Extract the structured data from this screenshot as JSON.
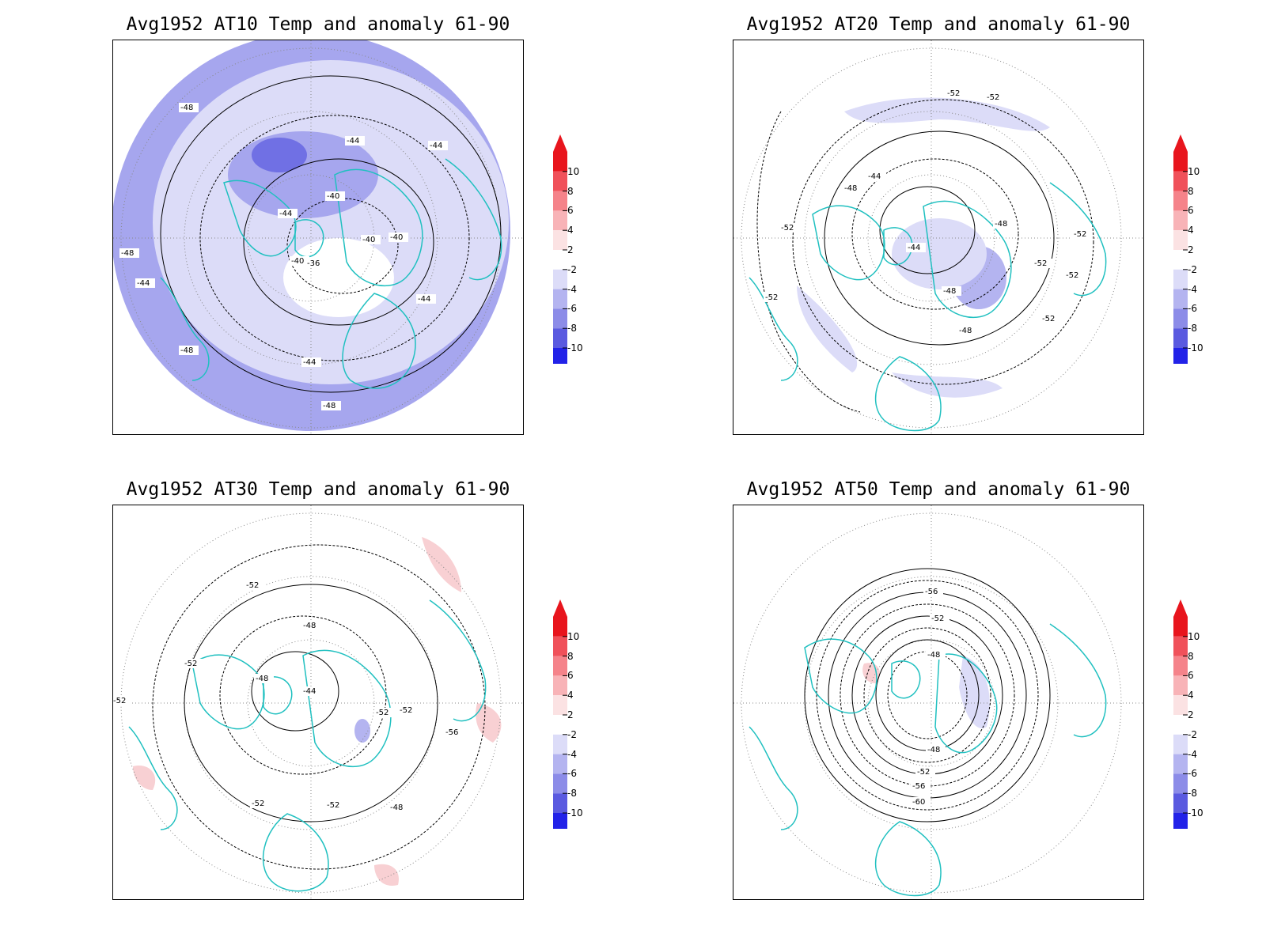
{
  "panels": [
    {
      "title": "Avg1952 AT10 Temp and anomaly 61-90",
      "contour_labels": [
        "-48",
        "-48",
        "-44",
        "-44",
        "-44",
        "-40",
        "-40",
        "-36",
        "-40",
        "-44",
        "-48",
        "-44",
        "-48",
        "-40",
        "-44"
      ]
    },
    {
      "title": "Avg1952 AT20 Temp and anomaly 61-90",
      "contour_labels": [
        "-52",
        "-52",
        "-52",
        "-52",
        "-48",
        "-44",
        "-44",
        "-48",
        "-48",
        "-52",
        "-52",
        "-52",
        "-48",
        "-52"
      ]
    },
    {
      "title": "Avg1952 AT30 Temp and anomaly 61-90",
      "contour_labels": [
        "-52",
        "-48",
        "-52",
        "-48",
        "-44",
        "-52",
        "-52",
        "-48",
        "-52",
        "-52",
        "-56",
        "-52"
      ]
    },
    {
      "title": "Avg1952 AT50 Temp and anomaly 61-90",
      "contour_labels": [
        "-56",
        "-52",
        "-48",
        "-48",
        "-52",
        "-56",
        "-60"
      ]
    }
  ],
  "colorbar": {
    "labels": [
      "10",
      "8",
      "6",
      "4",
      "2",
      "-2",
      "-4",
      "-6",
      "-8",
      "-10"
    ],
    "colors": [
      "#e8151d",
      "#f0515a",
      "#f5838a",
      "#f8b3b7",
      "#fbe2e3",
      "#ffffff",
      "#dcdcf8",
      "#b4b4f0",
      "#8c8ce8",
      "#5a5ae0",
      "#2222e8"
    ],
    "top_arrow_color": "#e8151d",
    "bottom_arrow_color": "#2222e8"
  }
}
